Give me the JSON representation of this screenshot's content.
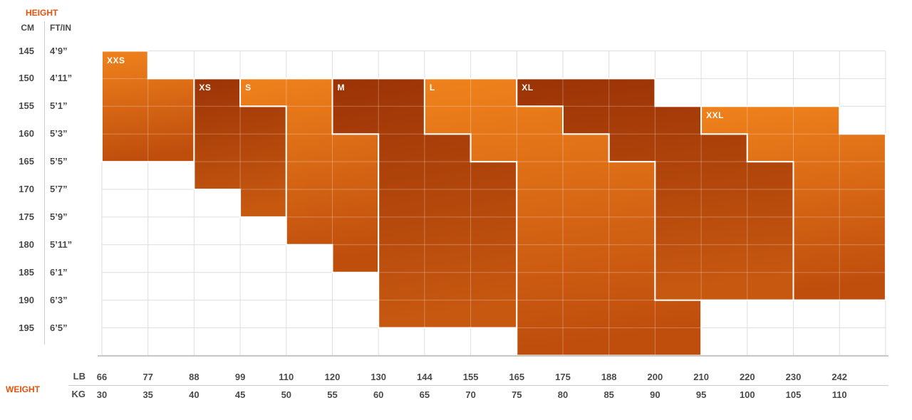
{
  "colors": {
    "accent": "#e8520b",
    "text": "#4a4a4a",
    "grid_line": "#dedede",
    "chart_bottom_border": "#c5c5c5",
    "separator_line": "#cccccc",
    "region_border": "#ffffff",
    "bright_top": "#f0821c",
    "bright_bottom": "#bf4e0d",
    "dark_top": "#9c3306",
    "dark_bottom": "#c65810"
  },
  "chart_data": {
    "type": "heatmap",
    "title": "Size chart: height vs weight with size regions XXS-XXL",
    "legend_position": "none",
    "grid": {
      "columns": 17,
      "rows": 11
    },
    "y_axis": {
      "label": "HEIGHT",
      "unit_cm": "CM",
      "unit_ftin": "FT/IN",
      "cm": [
        "145",
        "150",
        "155",
        "160",
        "165",
        "170",
        "175",
        "180",
        "185",
        "190",
        "195"
      ],
      "ftin": [
        "4’9”",
        "4’11”",
        "5’1”",
        "5’3”",
        "5’5”",
        "5’7”",
        "5’9”",
        "5’11”",
        "6’1”",
        "6’3”",
        "6’5”"
      ]
    },
    "x_axis": {
      "label": "WEIGHT",
      "unit_lb": "LB",
      "unit_kg": "KG",
      "lb": [
        "66",
        "77",
        "88",
        "99",
        "110",
        "120",
        "130",
        "144",
        "155",
        "165",
        "175",
        "188",
        "200",
        "210",
        "220",
        "230",
        "242"
      ],
      "kg": [
        "30",
        "35",
        "40",
        "45",
        "50",
        "55",
        "60",
        "65",
        "70",
        "75",
        "80",
        "85",
        "90",
        "95",
        "100",
        "105",
        "110"
      ]
    },
    "sizes": [
      {
        "label": "XXS",
        "tone": "bright",
        "label_cell": [
          0,
          0
        ],
        "polygon": [
          [
            0,
            0
          ],
          [
            1,
            0
          ],
          [
            1,
            1
          ],
          [
            2,
            1
          ],
          [
            2,
            4
          ],
          [
            0,
            4
          ]
        ]
      },
      {
        "label": "XS",
        "tone": "dark",
        "label_cell": [
          2,
          1
        ],
        "polygon": [
          [
            2,
            1
          ],
          [
            3,
            1
          ],
          [
            3,
            2
          ],
          [
            4,
            2
          ],
          [
            4,
            6
          ],
          [
            3,
            6
          ],
          [
            3,
            5
          ],
          [
            2,
            5
          ]
        ]
      },
      {
        "label": "S",
        "tone": "bright",
        "label_cell": [
          3,
          1
        ],
        "polygon": [
          [
            3,
            1
          ],
          [
            5,
            1
          ],
          [
            5,
            3
          ],
          [
            6,
            3
          ],
          [
            6,
            8
          ],
          [
            5,
            8
          ],
          [
            5,
            7
          ],
          [
            4,
            7
          ],
          [
            4,
            2
          ],
          [
            3,
            2
          ]
        ]
      },
      {
        "label": "M",
        "tone": "dark",
        "label_cell": [
          5,
          1
        ],
        "polygon": [
          [
            5,
            1
          ],
          [
            7,
            1
          ],
          [
            7,
            3
          ],
          [
            8,
            3
          ],
          [
            8,
            4
          ],
          [
            9,
            4
          ],
          [
            9,
            10
          ],
          [
            6,
            10
          ],
          [
            6,
            3
          ],
          [
            5,
            3
          ]
        ]
      },
      {
        "label": "L",
        "tone": "bright",
        "label_cell": [
          7,
          1
        ],
        "polygon": [
          [
            7,
            1
          ],
          [
            9,
            1
          ],
          [
            9,
            2
          ],
          [
            10,
            2
          ],
          [
            10,
            3
          ],
          [
            11,
            3
          ],
          [
            11,
            4
          ],
          [
            12,
            4
          ],
          [
            12,
            9
          ],
          [
            13,
            9
          ],
          [
            13,
            11
          ],
          [
            9,
            11
          ],
          [
            9,
            4
          ],
          [
            8,
            4
          ],
          [
            8,
            3
          ],
          [
            7,
            3
          ]
        ]
      },
      {
        "label": "XL",
        "tone": "dark",
        "label_cell": [
          9,
          1
        ],
        "polygon": [
          [
            9,
            1
          ],
          [
            12,
            1
          ],
          [
            12,
            2
          ],
          [
            13,
            2
          ],
          [
            13,
            3
          ],
          [
            14,
            3
          ],
          [
            14,
            4
          ],
          [
            15,
            4
          ],
          [
            15,
            9
          ],
          [
            12,
            9
          ],
          [
            12,
            4
          ],
          [
            11,
            4
          ],
          [
            11,
            3
          ],
          [
            10,
            3
          ],
          [
            10,
            2
          ],
          [
            9,
            2
          ]
        ]
      },
      {
        "label": "XXL",
        "tone": "bright",
        "label_cell": [
          13,
          2
        ],
        "polygon": [
          [
            13,
            2
          ],
          [
            16,
            2
          ],
          [
            16,
            3
          ],
          [
            17,
            3
          ],
          [
            17,
            9
          ],
          [
            15,
            9
          ],
          [
            15,
            4
          ],
          [
            14,
            4
          ],
          [
            14,
            3
          ],
          [
            13,
            3
          ]
        ]
      }
    ]
  }
}
